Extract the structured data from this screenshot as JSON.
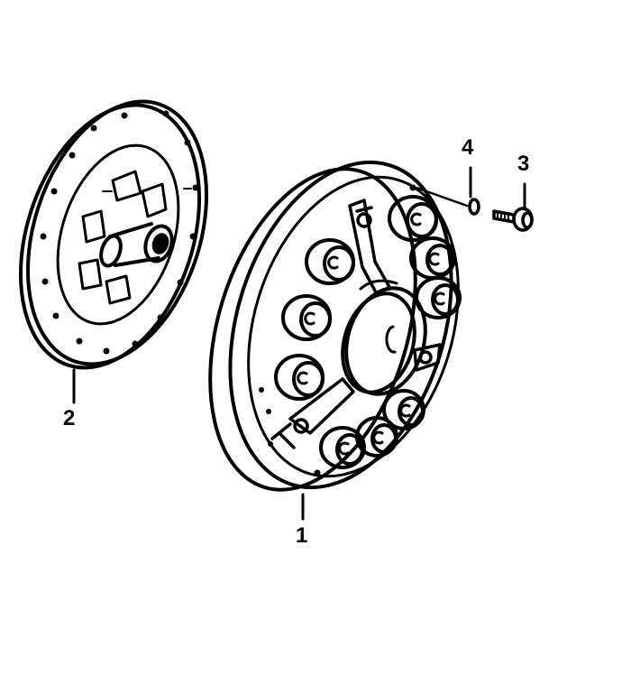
{
  "diagram": {
    "callouts": {
      "clutch_pressure_plate": "1",
      "clutch_disc": "2",
      "bolt": "3",
      "washer": "4"
    },
    "colors": {
      "ink": "#000000",
      "paper": "#ffffff"
    }
  }
}
